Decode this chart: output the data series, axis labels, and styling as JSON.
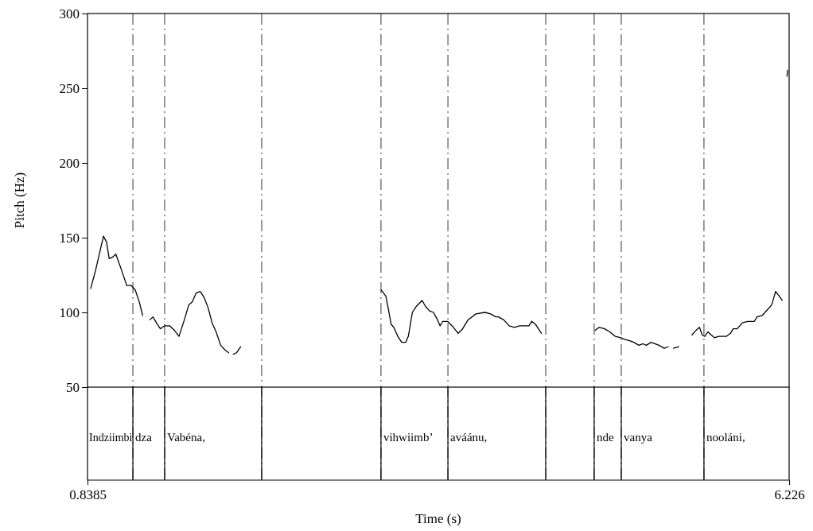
{
  "chart_data": {
    "type": "line",
    "xlabel": "Time (s)",
    "ylabel": "Pitch (Hz)",
    "xlim": [
      0.8385,
      6.226
    ],
    "xticks": [
      0.8385,
      6.226
    ],
    "ylim": [
      50,
      300
    ],
    "yticks": [
      50,
      100,
      150,
      200,
      250,
      300
    ],
    "grid": false,
    "marker": "none",
    "line_style": "solid",
    "series": [
      {
        "color": "#000000",
        "x": [
          0.863,
          0.9,
          0.961,
          0.985,
          1.005,
          1.032,
          1.056,
          1.093,
          1.14,
          1.174,
          1.205,
          1.236,
          1.262
        ],
        "values": [
          116,
          128,
          151,
          147,
          136,
          137,
          139,
          130,
          118,
          118,
          115,
          107,
          98
        ]
      },
      {
        "color": "#000000",
        "x": [
          1.317,
          1.341,
          1.368,
          1.398,
          1.429,
          1.47,
          1.506,
          1.541,
          1.582,
          1.616,
          1.643,
          1.673,
          1.704,
          1.734,
          1.765,
          1.795,
          1.826,
          1.861,
          1.893,
          1.922
        ],
        "values": [
          95,
          97,
          93,
          89,
          91,
          91,
          88,
          84,
          95,
          105,
          107,
          113,
          114,
          110,
          103,
          93,
          87,
          78,
          75,
          73
        ]
      },
      {
        "color": "#000000",
        "x": [
          1.958,
          1.983,
          2.015
        ],
        "values": [
          72,
          73,
          77
        ]
      },
      {
        "color": "#000000",
        "x": [
          3.094,
          3.129,
          3.149,
          3.17,
          3.19,
          3.221,
          3.251,
          3.282,
          3.302,
          3.333,
          3.363,
          3.408,
          3.434,
          3.465,
          3.495,
          3.526,
          3.546,
          3.567,
          3.603,
          3.638,
          3.685,
          3.719,
          3.76,
          3.821,
          3.892,
          3.933,
          3.974,
          3.994,
          4.035,
          4.076,
          4.116,
          4.157,
          4.198,
          4.228,
          4.249,
          4.279,
          4.324
        ],
        "values": [
          115,
          111,
          102,
          92,
          90,
          84,
          80,
          80,
          84,
          100,
          104,
          108,
          104,
          101,
          100,
          95,
          91,
          94,
          94,
          91,
          86,
          89,
          95,
          99,
          100,
          99,
          97,
          97,
          95,
          91,
          90,
          91,
          91,
          91,
          94,
          92,
          86
        ]
      },
      {
        "color": "#000000",
        "x": [
          4.737,
          4.768,
          4.809,
          4.849,
          4.89,
          4.935,
          4.961,
          5.002,
          5.033,
          5.073,
          5.104,
          5.13,
          5.165,
          5.195,
          5.226,
          5.267,
          5.297
        ],
        "values": [
          88,
          90,
          89,
          87,
          84,
          83,
          82,
          81,
          80,
          78,
          79,
          78,
          80,
          79,
          78,
          76,
          77
        ]
      },
      {
        "color": "#000000",
        "x": [
          5.338,
          5.379
        ],
        "values": [
          76,
          77
        ]
      },
      {
        "color": "#000000",
        "x": [
          5.48,
          5.511,
          5.538,
          5.558,
          5.578,
          5.603,
          5.627,
          5.654,
          5.684,
          5.715,
          5.745,
          5.776,
          5.796,
          5.827,
          5.867,
          5.908,
          5.959,
          5.98,
          6.02,
          6.061,
          6.092,
          6.122,
          6.149,
          6.173
        ],
        "values": [
          85,
          88,
          90,
          85,
          84,
          87,
          85,
          83,
          84,
          84,
          84,
          86,
          89,
          89,
          93,
          94,
          94,
          97,
          98,
          102,
          105,
          114,
          111,
          108
        ]
      },
      {
        "color": "#000000",
        "x": [
          6.21,
          6.214
        ],
        "values": [
          258,
          262
        ]
      }
    ],
    "ref_lines": [
      {
        "axis": "x",
        "value": 1.187,
        "line_style": "dashed",
        "label": "dza"
      },
      {
        "axis": "x",
        "value": 1.431,
        "line_style": "dashed",
        "label": "Vabéna,"
      },
      {
        "axis": "x",
        "value": 2.176,
        "line_style": "dashed"
      },
      {
        "axis": "x",
        "value": 3.092,
        "line_style": "dashed",
        "label": "vihwiimb’"
      },
      {
        "axis": "x",
        "value": 3.606,
        "line_style": "dashed",
        "label": "aváánu,"
      },
      {
        "axis": "x",
        "value": 4.357,
        "line_style": "dashed"
      },
      {
        "axis": "x",
        "value": 4.729,
        "line_style": "dashed",
        "label": "nde"
      },
      {
        "axis": "x",
        "value": 4.937,
        "line_style": "dashed",
        "label": "vanya"
      },
      {
        "axis": "x",
        "value": 5.572,
        "line_style": "dashed",
        "label": "nooláni,"
      }
    ],
    "annotations": [
      "Indziimbi"
    ]
  }
}
